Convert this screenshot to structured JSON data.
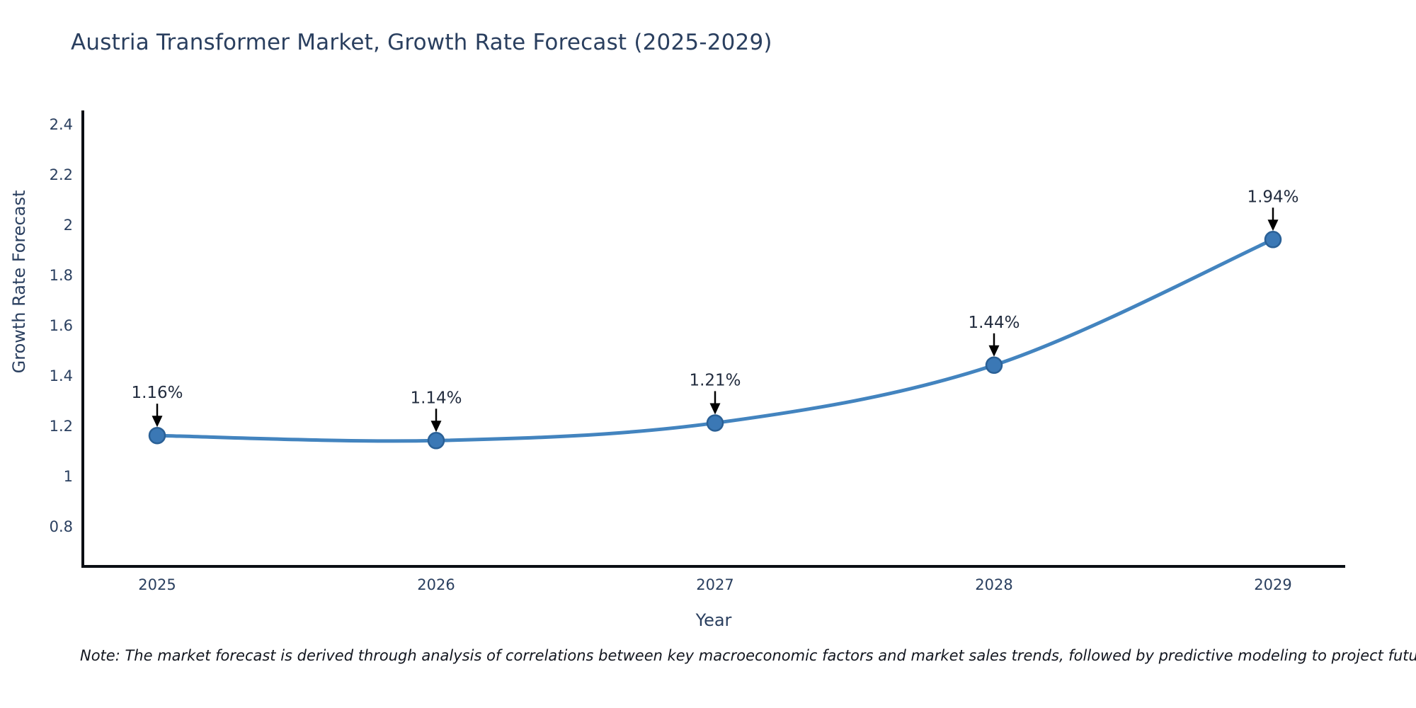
{
  "title": "Austria Transformer Market, Growth Rate Forecast (2025-2029)",
  "note": "Note: The market forecast is derived through analysis of correlations between key macroeconomic factors and market sales trends, followed by predictive modeling to project future sales",
  "chart_data": {
    "type": "line",
    "title": "Austria Transformer Market, Growth Rate Forecast (2025-2029)",
    "xlabel": "Year",
    "ylabel": "Growth Rate Forecast",
    "x": [
      2025,
      2026,
      2027,
      2028,
      2029
    ],
    "y": [
      1.16,
      1.14,
      1.21,
      1.44,
      1.94
    ],
    "point_labels": [
      "1.16%",
      "1.14%",
      "1.21%",
      "1.44%",
      "1.94%"
    ],
    "yticks": [
      0.8,
      1,
      1.2,
      1.4,
      1.6,
      1.8,
      2,
      2.2,
      2.4
    ],
    "ylim": [
      0.64,
      2.45
    ],
    "grid": false,
    "legend": "none",
    "smooth": true,
    "colors": {
      "text": "#2a3f5f",
      "axis": "#0a0e14",
      "line": "#4384bf",
      "marker": "#3b78b5",
      "marker_edge": "#2a6096",
      "annotation_text": "#222c3e",
      "arrow": "#000000"
    }
  }
}
